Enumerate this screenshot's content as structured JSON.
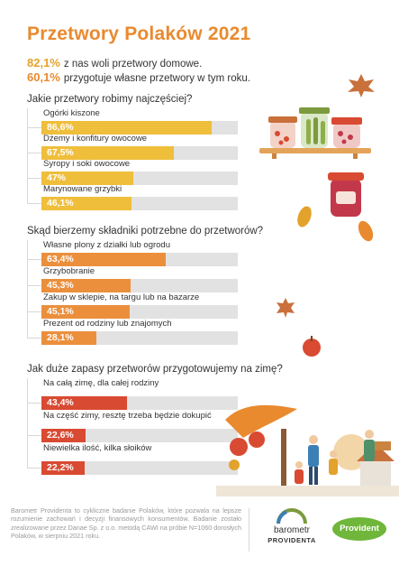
{
  "title": "Przetwory Polaków 2021",
  "stats": [
    {
      "value": "82,1%",
      "text": "z nas woli przetwory domowe."
    },
    {
      "value": "60,1%",
      "text": "przygotuje własne przetwory w tym roku."
    }
  ],
  "colors": {
    "title": "#e98a2f",
    "section1": "#efbe3b",
    "section2": "#eb8f3c",
    "section3": "#d94a32",
    "track": "#e2e2e2"
  },
  "chart_data": [
    {
      "type": "bar",
      "title": "Jakie przetwory robimy najczęściej?",
      "categories": [
        "Ogórki kiszone",
        "Dżemy i konfitury owocowe",
        "Syropy i soki owocowe",
        "Marynowane grzybki"
      ],
      "values": [
        86.6,
        67.5,
        47,
        46.1
      ],
      "labels": [
        "86,6%",
        "67,5%",
        "47%",
        "46,1%"
      ],
      "ylim": [
        0,
        100
      ]
    },
    {
      "type": "bar",
      "title": "Skąd bierzemy składniki potrzebne do przetworów?",
      "categories": [
        "Własne plony z działki lub ogrodu",
        "Grzybobranie",
        "Zakup w sklepie, na targu lub na bazarze",
        "Prezent od rodziny lub znajomych"
      ],
      "values": [
        63.4,
        45.3,
        45.1,
        28.1
      ],
      "labels": [
        "63,4%",
        "45,3%",
        "45,1%",
        "28,1%"
      ],
      "ylim": [
        0,
        100
      ]
    },
    {
      "type": "bar",
      "title": "Jak duże zapasy przetworów przygotowujemy na zimę?",
      "categories": [
        "Na całą zimę, dla całej rodziny",
        "Na część zimy, resztę trzeba będzie dokupić",
        "Niewielka ilość, kilka słoików"
      ],
      "values": [
        43.4,
        22.6,
        22.2
      ],
      "labels": [
        "43,4%",
        "22,6%",
        "22,2%"
      ],
      "ylim": [
        0,
        100
      ]
    }
  ],
  "footer": "Barometr Providenta to cykliczne badanie Polaków, które pozwala na lepsze rozumienie zachowań i decyzji finansowych konsumentów. Badanie zostało zrealizowane przez Danae Sp. z o.o. metodą CAWI na próbie N=1060 dorosłych Polaków, w sierpniu 2021 roku.",
  "logos": {
    "barometr_line1": "barometr",
    "barometr_line2": "PROVIDENTA",
    "provident": "Provident"
  }
}
